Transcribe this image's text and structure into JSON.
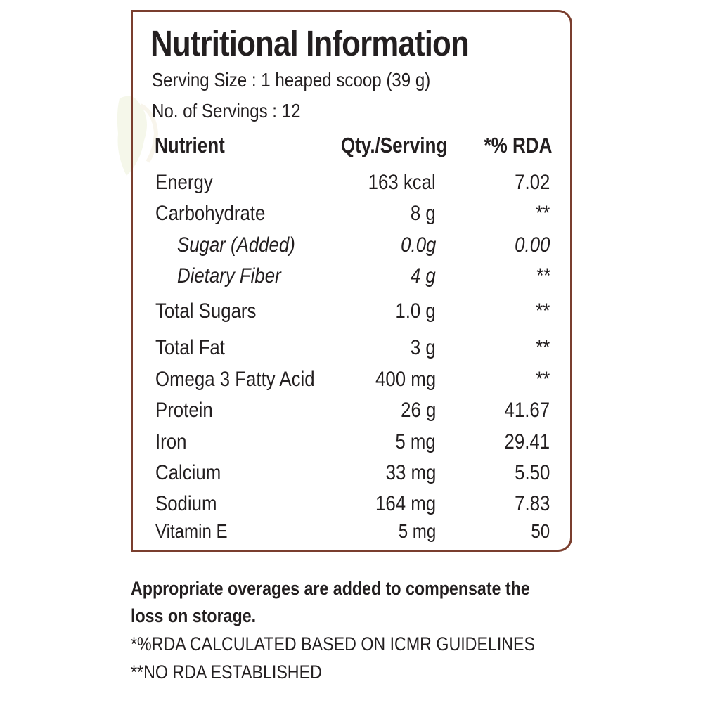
{
  "panel": {
    "title": "Nutritional Information",
    "serving_size": "Serving Size : 1 heaped scoop (39 g)",
    "servings": "No. of Servings : 12",
    "headers": {
      "nutrient": "Nutrient",
      "qty": "Qty./Serving",
      "rda": "*% RDA"
    },
    "rows": [
      {
        "name": "Energy",
        "qty": "163 kcal",
        "rda": "7.02"
      },
      {
        "name": "Carbohydrate",
        "qty": "8 g",
        "rda": "**"
      },
      {
        "name": "Sugar (Added)",
        "qty": "0.0g",
        "rda": "0.00"
      },
      {
        "name": "Dietary Fiber",
        "qty": "4 g",
        "rda": "**"
      },
      {
        "name": "Total Sugars",
        "qty": "1.0 g",
        "rda": "**"
      },
      {
        "name": "Total Fat",
        "qty": "3 g",
        "rda": "**"
      },
      {
        "name": "Omega 3 Fatty Acid",
        "qty": "400 mg",
        "rda": "**"
      },
      {
        "name": "Protein",
        "qty": "26 g",
        "rda": "41.67"
      },
      {
        "name": "Iron",
        "qty": "5 mg",
        "rda": "29.41"
      },
      {
        "name": "Calcium",
        "qty": "33 mg",
        "rda": "5.50"
      },
      {
        "name": "Sodium",
        "qty": "164 mg",
        "rda": "7.83"
      },
      {
        "name": "Vitamin E",
        "qty": "5 mg",
        "rda": "50"
      }
    ]
  },
  "notes": {
    "overages_line1": "Appropriate overages are added to compensate the",
    "overages_line2": "loss on storage.",
    "rda_basis": "*%RDA CALCULATED BASED ON ICMR GUIDELINES",
    "no_rda": "**NO RDA ESTABLISHED"
  },
  "colors": {
    "border": "#7a3e2e",
    "text": "#231f20"
  }
}
